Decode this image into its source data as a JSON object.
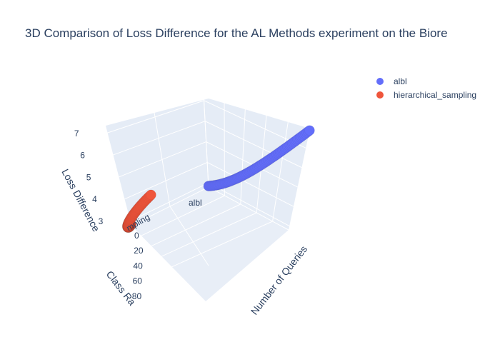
{
  "chart_data": {
    "type": "scatter3d",
    "title": "3D Comparison of Loss Difference for the AL Methods experiment on the Biore",
    "axes": {
      "x": {
        "title": "Number of Queries",
        "ticks": [
          "0",
          "20",
          "40",
          "60",
          "80"
        ],
        "range": [
          0,
          100
        ]
      },
      "y": {
        "title": "Class Ra",
        "categories": [
          "albl",
          "hierarchical_sampling"
        ],
        "tick_labels": [
          "albl",
          "mpling"
        ]
      },
      "z": {
        "title": "Loss Difference",
        "ticks": [
          "3",
          "4",
          "5",
          "6",
          "7"
        ],
        "range": [
          2.8,
          8.0
        ]
      }
    },
    "series": [
      {
        "name": "albl",
        "color": "#636efa",
        "class": "albl",
        "x": [
          0,
          100
        ],
        "loss_start": 2.85,
        "loss_end": 7.9
      },
      {
        "name": "hierarchical_sampling",
        "color": "#ef553b",
        "class": "hierarchical_sampling",
        "x": [
          0,
          100
        ],
        "loss_start": 2.85,
        "loss_end": 7.9
      }
    ],
    "legend": {
      "position": "top-right",
      "entries": [
        "albl",
        "hierarchical_sampling"
      ]
    }
  }
}
